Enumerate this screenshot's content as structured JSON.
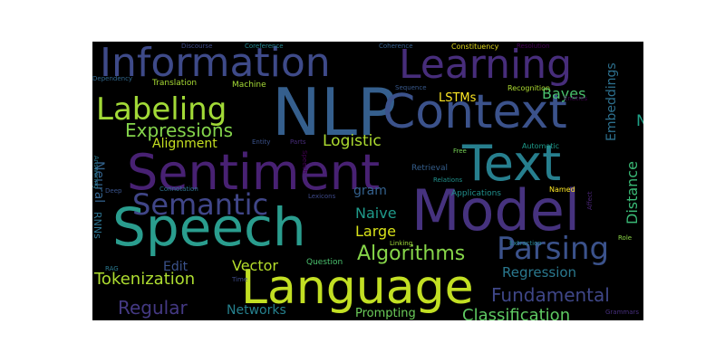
{
  "word_cloud": {
    "background": "#000000",
    "words": [
      {
        "text": "NLP",
        "color": "#355f8d"
      },
      {
        "text": "Speech",
        "color": "#2a9d8e"
      },
      {
        "text": "Model",
        "color": "#46327e"
      },
      {
        "text": "Language",
        "color": "#c2df23"
      },
      {
        "text": "Sentiment",
        "color": "#482173"
      },
      {
        "text": "Text",
        "color": "#277f8e"
      },
      {
        "text": "Context",
        "color": "#3b528b"
      },
      {
        "text": "Information",
        "color": "#3e4a89"
      },
      {
        "text": "Learning",
        "color": "#472d7b"
      },
      {
        "text": "Labeling",
        "color": "#a2da37"
      },
      {
        "text": "Semantic",
        "color": "#404688"
      },
      {
        "text": "Parsing",
        "color": "#3b528b"
      },
      {
        "text": "Algorithms",
        "color": "#86d549"
      },
      {
        "text": "Fundamental",
        "color": "#3f4788"
      },
      {
        "text": "Expressions",
        "color": "#84d44b"
      },
      {
        "text": "Tokenization",
        "color": "#addc30"
      },
      {
        "text": "Regular",
        "color": "#443983"
      },
      {
        "text": "Classification",
        "color": "#5ec962"
      },
      {
        "text": "Logistic",
        "color": "#addc30"
      },
      {
        "text": "Naive",
        "color": "#1f9a8a"
      },
      {
        "text": "Bayes",
        "color": "#4ac16d"
      },
      {
        "text": "Large",
        "color": "#d8e219"
      },
      {
        "text": "Vector",
        "color": "#b5de2b"
      },
      {
        "text": "Regression",
        "color": "#2a788e"
      },
      {
        "text": "Networks",
        "color": "#26818e"
      },
      {
        "text": "Prompting",
        "color": "#6ccd5a"
      },
      {
        "text": "Edit",
        "color": "#3b528b"
      },
      {
        "text": "Neural",
        "color": "#33638d"
      },
      {
        "text": "Alignment",
        "color": "#c5e021"
      },
      {
        "text": "Embeddings",
        "color": "#2d708e"
      },
      {
        "text": "Distance",
        "color": "#3aba76"
      },
      {
        "text": "gram",
        "color": "#34618d"
      },
      {
        "text": "LSTMs",
        "color": "#fde725"
      },
      {
        "text": "N",
        "color": "#1fa187"
      },
      {
        "text": "RNNs",
        "color": "#2c728e"
      },
      {
        "text": "Question",
        "color": "#4ac16d"
      },
      {
        "text": "Translation",
        "color": "#a8db34"
      },
      {
        "text": "Machine",
        "color": "#a5db36"
      },
      {
        "text": "Sequence",
        "color": "#38598c"
      },
      {
        "text": "Recognition",
        "color": "#addc30"
      },
      {
        "text": "Entities",
        "color": "#440154"
      },
      {
        "text": "Retrieval",
        "color": "#355f8d"
      },
      {
        "text": "Automatic",
        "color": "#1e9b8a"
      },
      {
        "text": "Free",
        "color": "#75d054"
      },
      {
        "text": "Relations",
        "color": "#21918c"
      },
      {
        "text": "Applications",
        "color": "#21908d"
      },
      {
        "text": "Named",
        "color": "#fde725"
      },
      {
        "text": "Linking",
        "color": "#a0da39"
      },
      {
        "text": "Extraction",
        "color": "#26828e"
      },
      {
        "text": "Role",
        "color": "#8bd646"
      },
      {
        "text": "Grammars",
        "color": "#472f7d"
      },
      {
        "text": "Discourse",
        "color": "#3e4a89"
      },
      {
        "text": "Coreference",
        "color": "#24868e"
      },
      {
        "text": "Coherence",
        "color": "#355f8d"
      },
      {
        "text": "Constituency",
        "color": "#ddd61a"
      },
      {
        "text": "Resolution",
        "color": "#440154"
      },
      {
        "text": "Dependency",
        "color": "#31688e"
      },
      {
        "text": "Answering",
        "color": "#2a788e"
      },
      {
        "text": "Deep",
        "color": "#3a548c"
      },
      {
        "text": "Connotation",
        "color": "#2d718e"
      },
      {
        "text": "Lexicons",
        "color": "#3e4989"
      },
      {
        "text": "Affect",
        "color": "#482475"
      },
      {
        "text": "Parts",
        "color": "#472c7a"
      },
      {
        "text": "Entity",
        "color": "#3b528b"
      },
      {
        "text": "Speech",
        "color": "#440154"
      },
      {
        "text": "RAG",
        "color": "#2a788e"
      },
      {
        "text": "Time",
        "color": "#3e4a89"
      }
    ]
  }
}
